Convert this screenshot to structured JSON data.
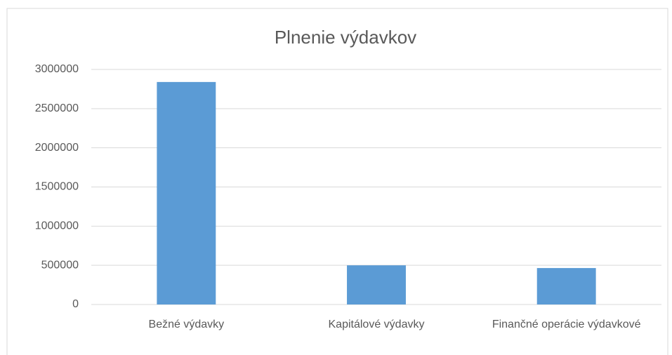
{
  "chart_data": {
    "type": "bar",
    "title": "Plnenie výdavkov",
    "categories": [
      "Bežné výdavky",
      "Kapitálové výdavky",
      "Finančné operácie výdavkové"
    ],
    "values": [
      2840000,
      500000,
      465000
    ],
    "color": "#5b9bd5",
    "ylim": [
      0,
      3000000
    ],
    "yticks": [
      0,
      500000,
      1000000,
      1500000,
      2000000,
      2500000,
      3000000
    ],
    "grid": true
  }
}
